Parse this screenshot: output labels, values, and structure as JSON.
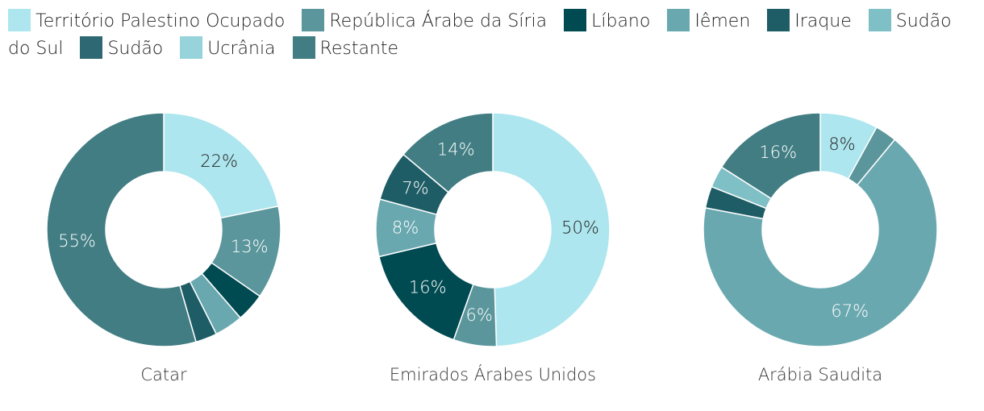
{
  "legend": {
    "names": [
      "Território Palestino Ocupado",
      "República Árabe da Síria",
      "Líbano",
      "Iêmen",
      "Iraque",
      "Sudão do Sul",
      "Sudão",
      "Ucrânia",
      "Restante"
    ],
    "colors": [
      "#ade6ee",
      "#5a969b",
      "#004a52",
      "#6aa8b0",
      "#1e5d66",
      "#7fbfc6",
      "#2e6872",
      "#96d3db",
      "#417d83"
    ]
  },
  "chart_data": [
    {
      "type": "pie",
      "donut": true,
      "title": "Catar",
      "categories": [
        "Território Palestino Ocupado",
        "República Árabe da Síria",
        "Líbano",
        "Iêmen",
        "Iraque",
        "Restante"
      ],
      "values": [
        22,
        13,
        4,
        4,
        3,
        55
      ],
      "value_labels": [
        "22%",
        "13%",
        null,
        null,
        null,
        "55%"
      ]
    },
    {
      "type": "pie",
      "donut": true,
      "title": "Emirados Árabes Unidos",
      "categories": [
        "Território Palestino Ocupado",
        "República Árabe da Síria",
        "Líbano",
        "Iêmen",
        "Iraque",
        "Restante"
      ],
      "values": [
        50,
        6,
        16,
        8,
        7,
        14
      ],
      "value_labels": [
        "50%",
        "6%",
        "16%",
        "8%",
        "7%",
        "14%"
      ]
    },
    {
      "type": "pie",
      "donut": true,
      "title": "Arábia Saudita",
      "categories": [
        "Território Palestino Ocupado",
        "República Árabe da Síria",
        "Iêmen",
        "Iraque",
        "Sudão do Sul",
        "Restante"
      ],
      "values": [
        8,
        3,
        67,
        3,
        3,
        16
      ],
      "value_labels": [
        "8%",
        null,
        "67%",
        null,
        null,
        "16%"
      ]
    }
  ]
}
